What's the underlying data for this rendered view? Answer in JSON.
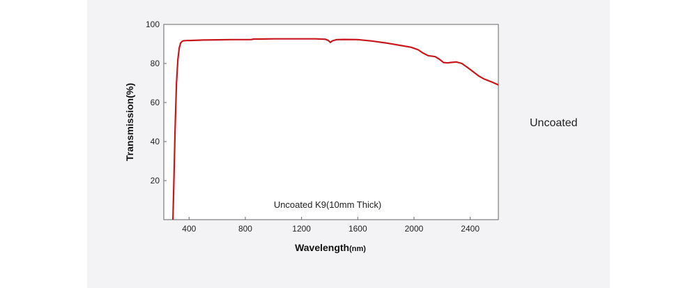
{
  "side_label": "Uncoated",
  "chart_data": {
    "type": "line",
    "title": "",
    "xlabel": "Wavelength",
    "xlabel_unit": "(nm)",
    "ylabel": "Transmission(%)",
    "annotation": "Uncoated K9(10mm Thick)",
    "xlim": [
      220,
      2600
    ],
    "ylim": [
      0,
      100
    ],
    "xticks": [
      400,
      800,
      1200,
      1600,
      2000,
      2400
    ],
    "yticks": [
      20,
      40,
      60,
      80,
      100
    ],
    "grid": false,
    "color": "#c8171d",
    "series": [
      {
        "x": [
          285,
          292,
          300,
          310,
          320,
          330,
          340,
          350,
          360,
          380,
          420,
          500,
          600,
          700,
          840,
          860,
          900,
          1000,
          1100,
          1200,
          1300,
          1370,
          1390,
          1405,
          1420,
          1450,
          1500,
          1600,
          1700,
          1800,
          1900,
          1980,
          2030,
          2060,
          2100,
          2150,
          2180,
          2210,
          2240,
          2260,
          2300,
          2340,
          2380,
          2420,
          2460,
          2500,
          2550,
          2600
        ],
        "y": [
          0,
          20,
          45,
          70,
          82,
          88,
          90.5,
          91.3,
          91.6,
          91.7,
          91.8,
          92.0,
          92.1,
          92.2,
          92.2,
          92.5,
          92.5,
          92.6,
          92.6,
          92.6,
          92.6,
          92.4,
          91.8,
          90.8,
          91.6,
          92.2,
          92.3,
          92.2,
          91.5,
          90.5,
          89.3,
          88.3,
          87.0,
          85.5,
          84.0,
          83.5,
          82.2,
          80.5,
          80.3,
          80.5,
          80.8,
          80.0,
          78.0,
          75.8,
          73.6,
          72.0,
          70.6,
          69.0
        ]
      }
    ]
  }
}
